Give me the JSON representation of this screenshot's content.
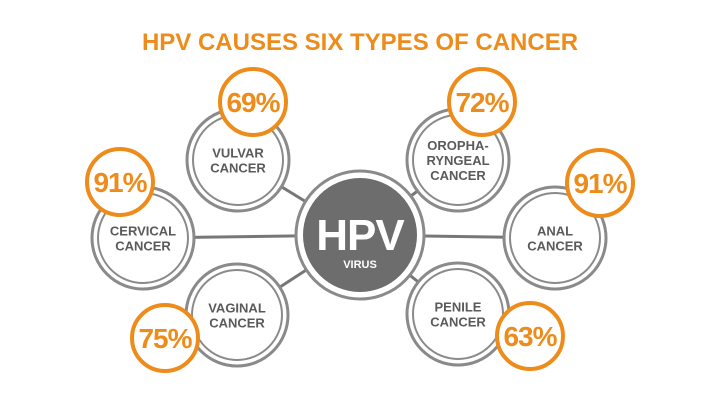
{
  "title": "HPV CAUSES SIX TYPES OF CANCER",
  "hub": {
    "title": "HPV",
    "subtitle": "VIRUS"
  },
  "nodes": [
    {
      "id": "vulvar",
      "lines": [
        "VULVAR",
        "CANCER"
      ],
      "percent": "69%",
      "value": 69
    },
    {
      "id": "oropharyngeal",
      "lines": [
        "OROPHA-",
        "RYNGEAL",
        "CANCER"
      ],
      "percent": "72%",
      "value": 72
    },
    {
      "id": "cervical",
      "lines": [
        "CERVICAL",
        "CANCER"
      ],
      "percent": "91%",
      "value": 91
    },
    {
      "id": "anal",
      "lines": [
        "ANAL",
        "CANCER"
      ],
      "percent": "91%",
      "value": 91
    },
    {
      "id": "vaginal",
      "lines": [
        "VAGINAL",
        "CANCER"
      ],
      "percent": "75%",
      "value": 75
    },
    {
      "id": "penile",
      "lines": [
        "PENILE",
        "CANCER"
      ],
      "percent": "63%",
      "value": 63
    }
  ],
  "colors": {
    "accent": "#ee8c1b",
    "ring": "#8a8a8a",
    "text": "#5a5a5a",
    "hub_fill": "#6d6d6d",
    "line": "#777777"
  }
}
